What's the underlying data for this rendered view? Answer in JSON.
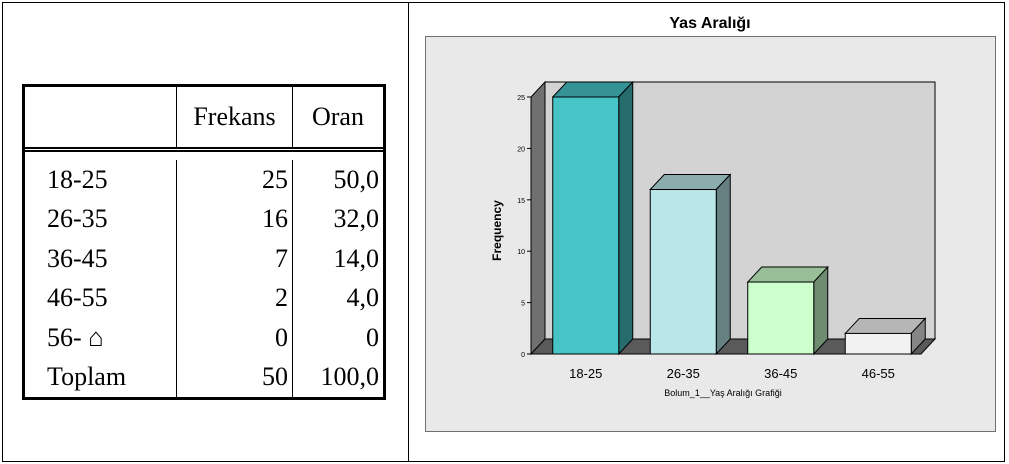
{
  "table": {
    "headers": [
      "",
      "Frekans",
      "Oran"
    ],
    "rows": [
      [
        "18-25",
        "25",
        "50,0"
      ],
      [
        "26-35",
        "16",
        "32,0"
      ],
      [
        "36-45",
        "7",
        "14,0"
      ],
      [
        "46-55",
        "2",
        "4,0"
      ],
      [
        "56- ⌂",
        "0",
        "0"
      ],
      [
        "Toplam",
        "50",
        "100,0"
      ]
    ]
  },
  "chart_data": {
    "type": "bar",
    "title": "Yas Aralığı",
    "xlabel": "Bolum_1__Yaş Aralığı Grafiği",
    "ylabel": "Frequency",
    "categories": [
      "18-25",
      "26-35",
      "36-45",
      "46-55"
    ],
    "values": [
      25,
      16,
      7,
      2
    ],
    "ylim": [
      0,
      25
    ],
    "yticks": [
      0,
      5,
      10,
      15,
      20,
      25
    ],
    "colors": [
      "#47c4c6",
      "#b9e6e8",
      "#ccffcc",
      "#f2f2f2"
    ],
    "wall_color": "#d3d3d3",
    "grid": false,
    "legend": "none"
  }
}
